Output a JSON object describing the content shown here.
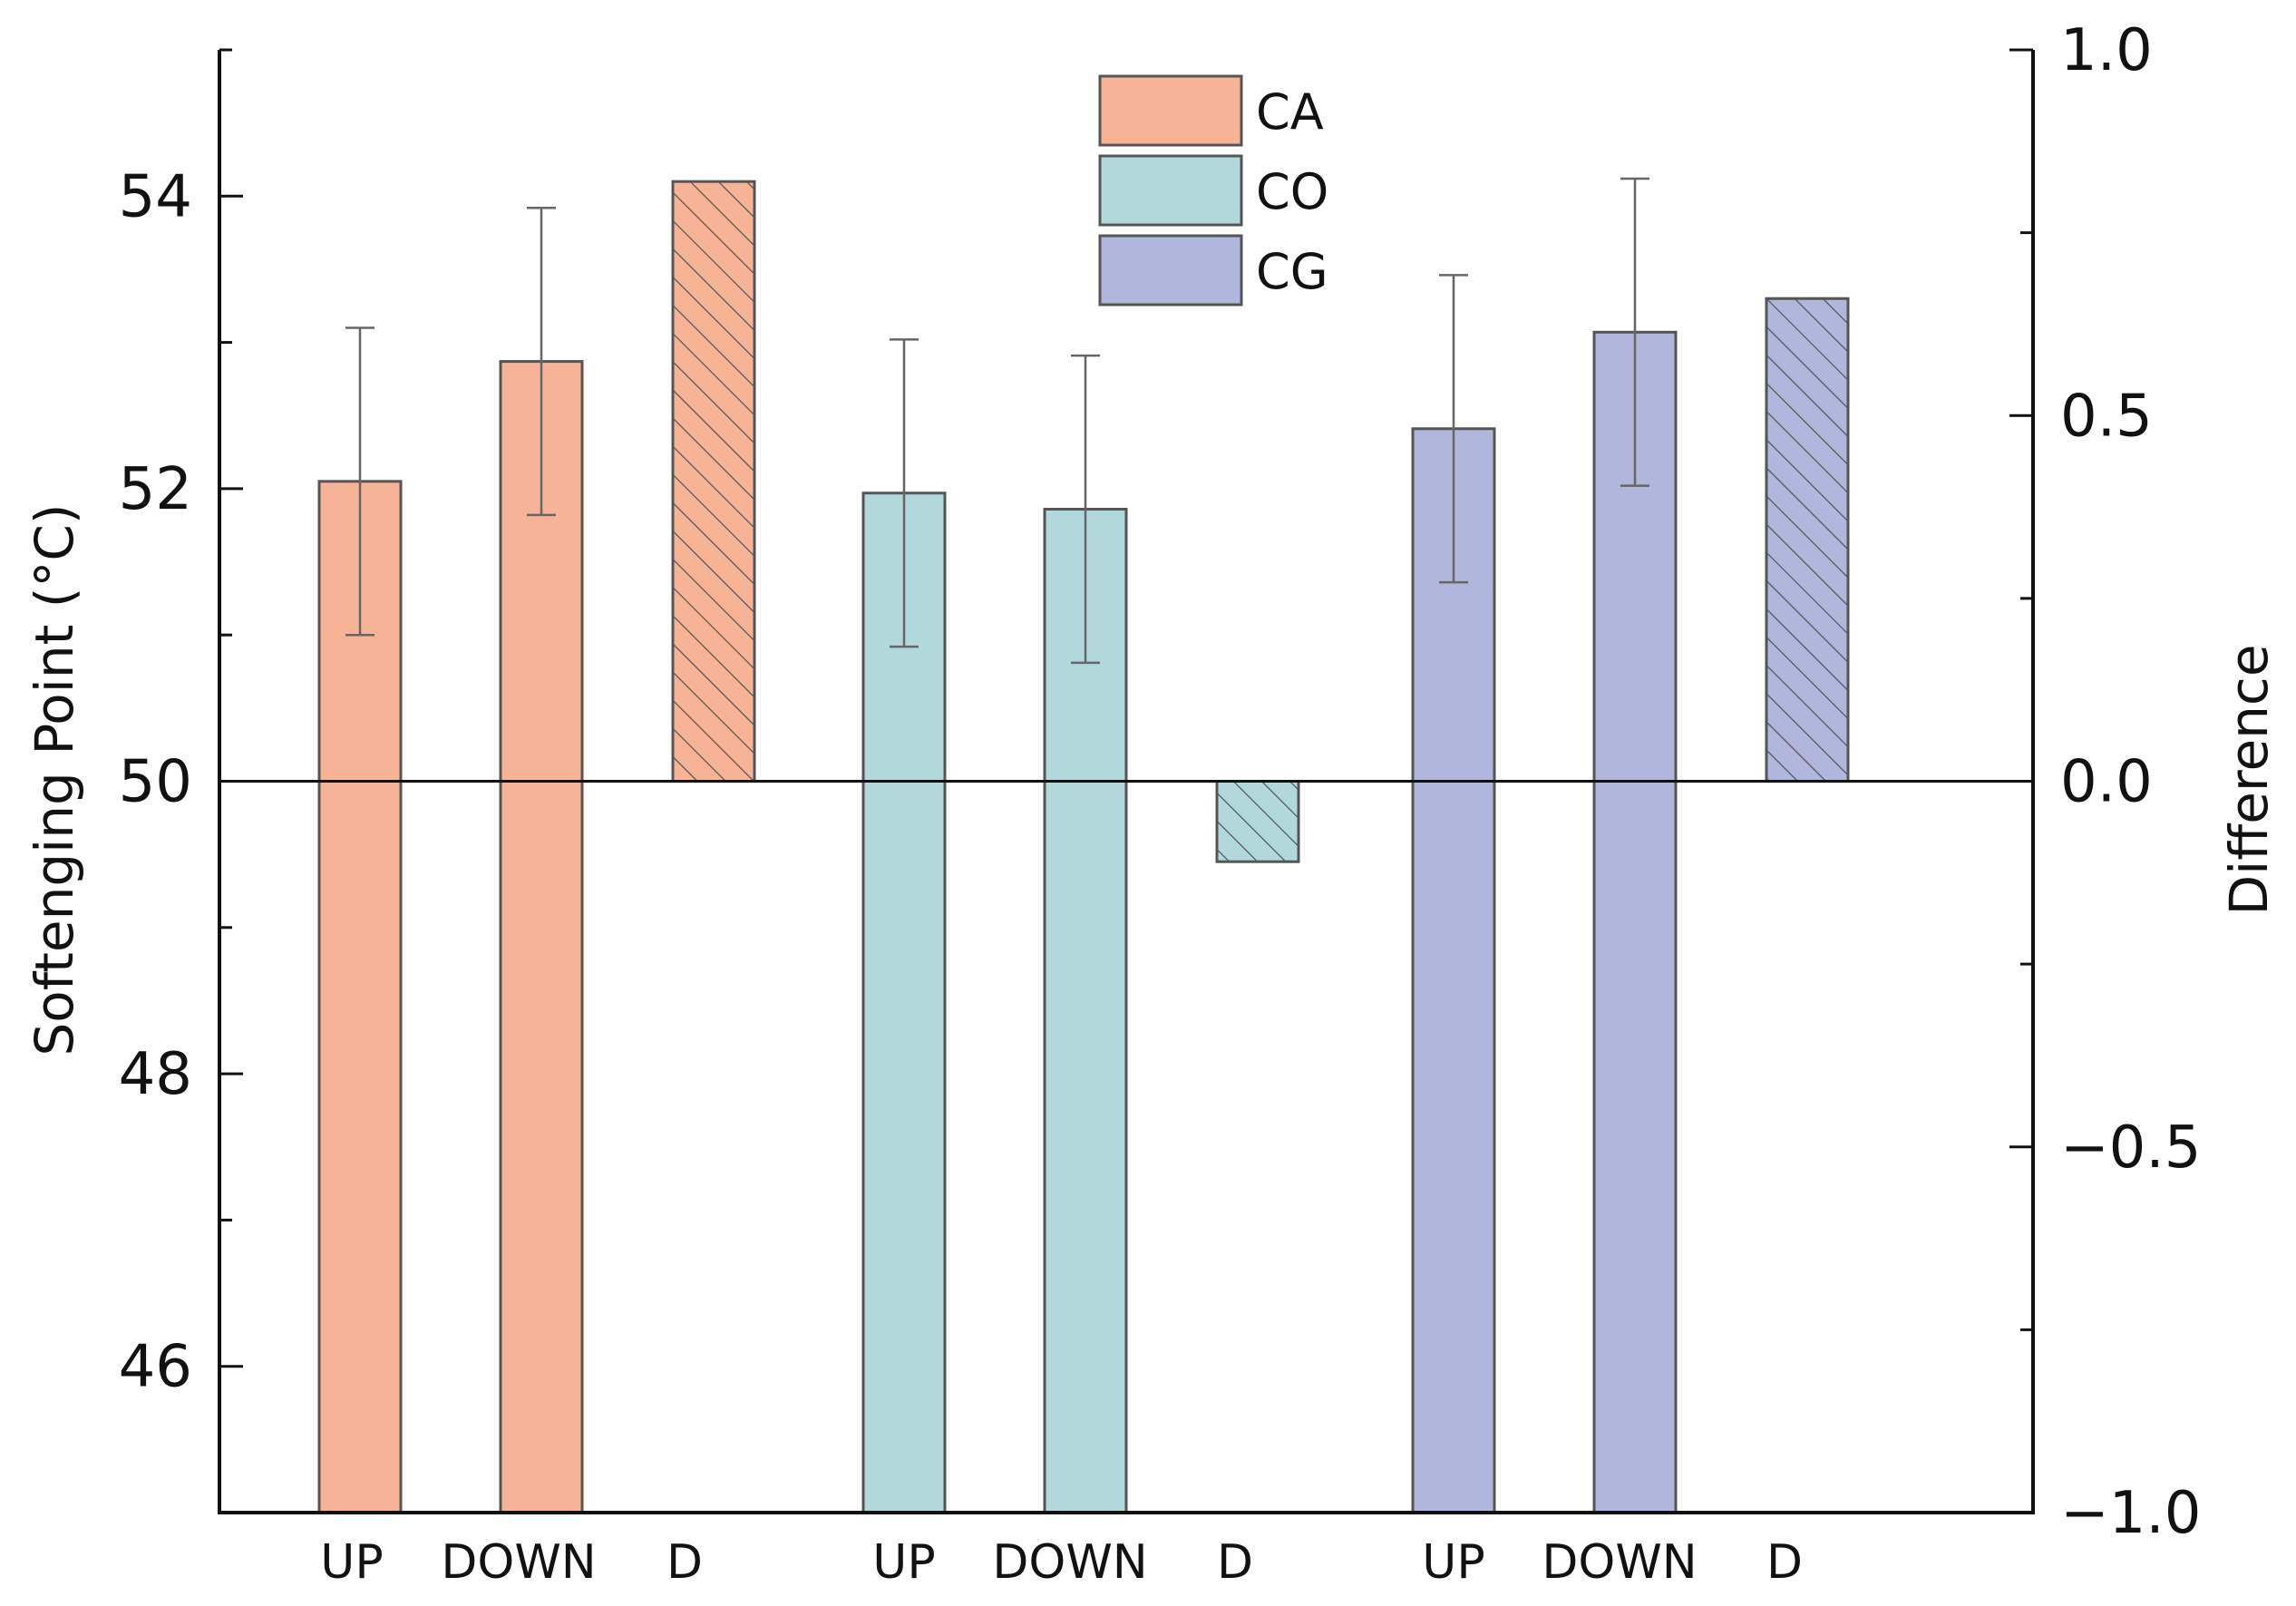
{
  "chart_data": {
    "type": "bar",
    "title": "",
    "xlabel": "",
    "ylabel": "Softenging Point (°C)",
    "y2label": "Difference",
    "ylim": [
      45,
      55
    ],
    "y2lim": [
      -1.0,
      1.0
    ],
    "yticks": [
      "46",
      "48",
      "50",
      "52",
      "54"
    ],
    "y2ticks": [
      "1.0",
      "0.5",
      "0.0",
      "−0.5",
      "−1.0"
    ],
    "legend_position": "top-center",
    "categories": [
      "UP",
      "DOWN",
      "D",
      "UP",
      "DOWN",
      "D",
      "UP",
      "DOWN",
      "D"
    ],
    "groups": [
      {
        "name": "CA",
        "color": "#f6b396",
        "up": {
          "label": "UP",
          "value": 52.05,
          "error": 1.05
        },
        "down": {
          "label": "DOWN",
          "value": 52.87,
          "error": 1.05
        },
        "diff": {
          "label": "D",
          "value": 0.82
        }
      },
      {
        "name": "CO",
        "color": "#b1d9dc",
        "up": {
          "label": "UP",
          "value": 51.97,
          "error": 1.05
        },
        "down": {
          "label": "DOWN",
          "value": 51.86,
          "error": 1.05
        },
        "diff": {
          "label": "D",
          "value": -0.11
        }
      },
      {
        "name": "CG",
        "color": "#b1b6dc",
        "up": {
          "label": "UP",
          "value": 52.41,
          "error": 1.05
        },
        "down": {
          "label": "DOWN",
          "value": 53.07,
          "error": 1.05
        },
        "diff": {
          "label": "D",
          "value": 0.66
        }
      }
    ]
  }
}
